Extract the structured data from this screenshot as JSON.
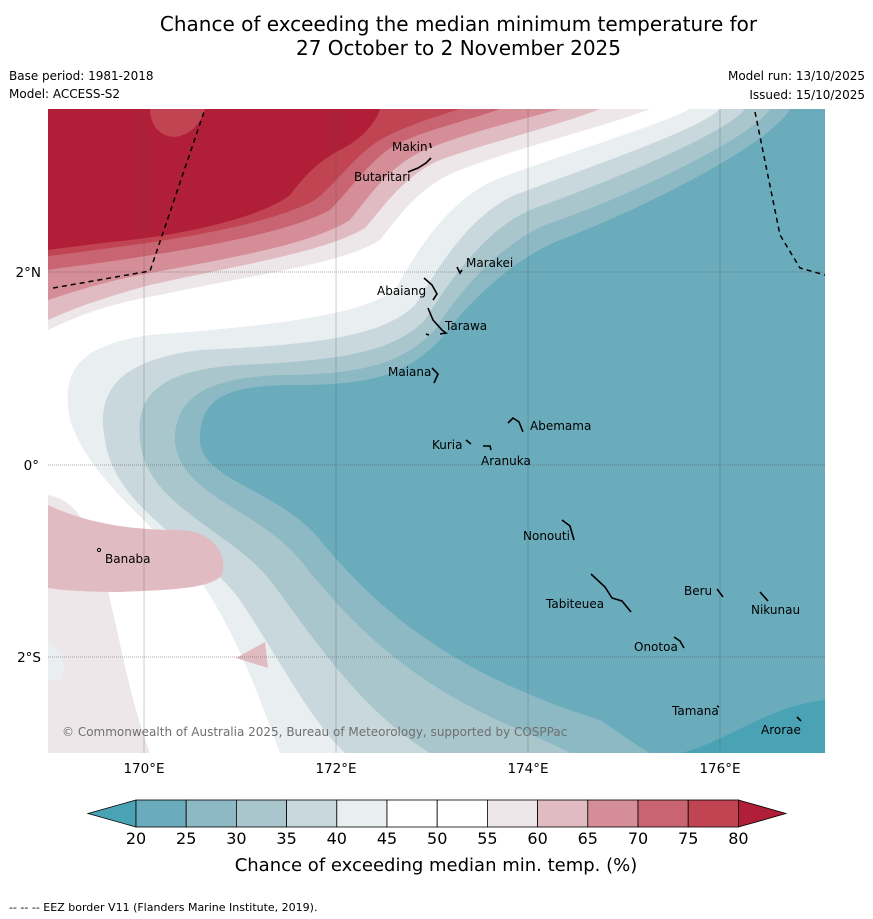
{
  "header": {
    "title_line1": "Chance of exceeding the median minimum temperature for",
    "title_line2": "27 October to 2 November 2025",
    "base_period": "Base period: 1981-2018",
    "model": "Model: ACCESS-S2",
    "model_run": "Model run: 13/10/2025",
    "issued": "Issued: 15/10/2025"
  },
  "map": {
    "lat_labels": [
      "2°N",
      "0°",
      "2°S"
    ],
    "lon_labels": [
      "170°E",
      "172°E",
      "174°E",
      "176°E"
    ],
    "places": [
      "Makin",
      "Butaritari",
      "Marakei",
      "Abaiang",
      "Tarawa",
      "Maiana",
      "Abemama",
      "Kuria",
      "Aranuka",
      "Banaba",
      "Nonouti",
      "Beru",
      "Nikunau",
      "Tabiteuea",
      "Onotoa",
      "Tamana",
      "Arorae"
    ],
    "copyright": "© Commonwealth of Australia 2025, Bureau of Meteorology, supported by COSPPac"
  },
  "colorbar": {
    "ticks": [
      "20",
      "25",
      "30",
      "35",
      "40",
      "45",
      "50",
      "55",
      "60",
      "65",
      "70",
      "75",
      "80"
    ],
    "title": "Chance of exceeding median min. temp. (%)",
    "colors": [
      "#4aa3b5",
      "#6aacbb",
      "#8cb9c4",
      "#a9c6cc",
      "#c9d8dd",
      "#e9eef1",
      "#ffffff",
      "#ffffff",
      "#ede7e9",
      "#e1bbc2",
      "#d58e98",
      "#c96572",
      "#c04452",
      "#b11e37"
    ]
  },
  "footnote": "--  --  -- EEZ border V11 (Flanders Marine Institute, 2019)."
}
